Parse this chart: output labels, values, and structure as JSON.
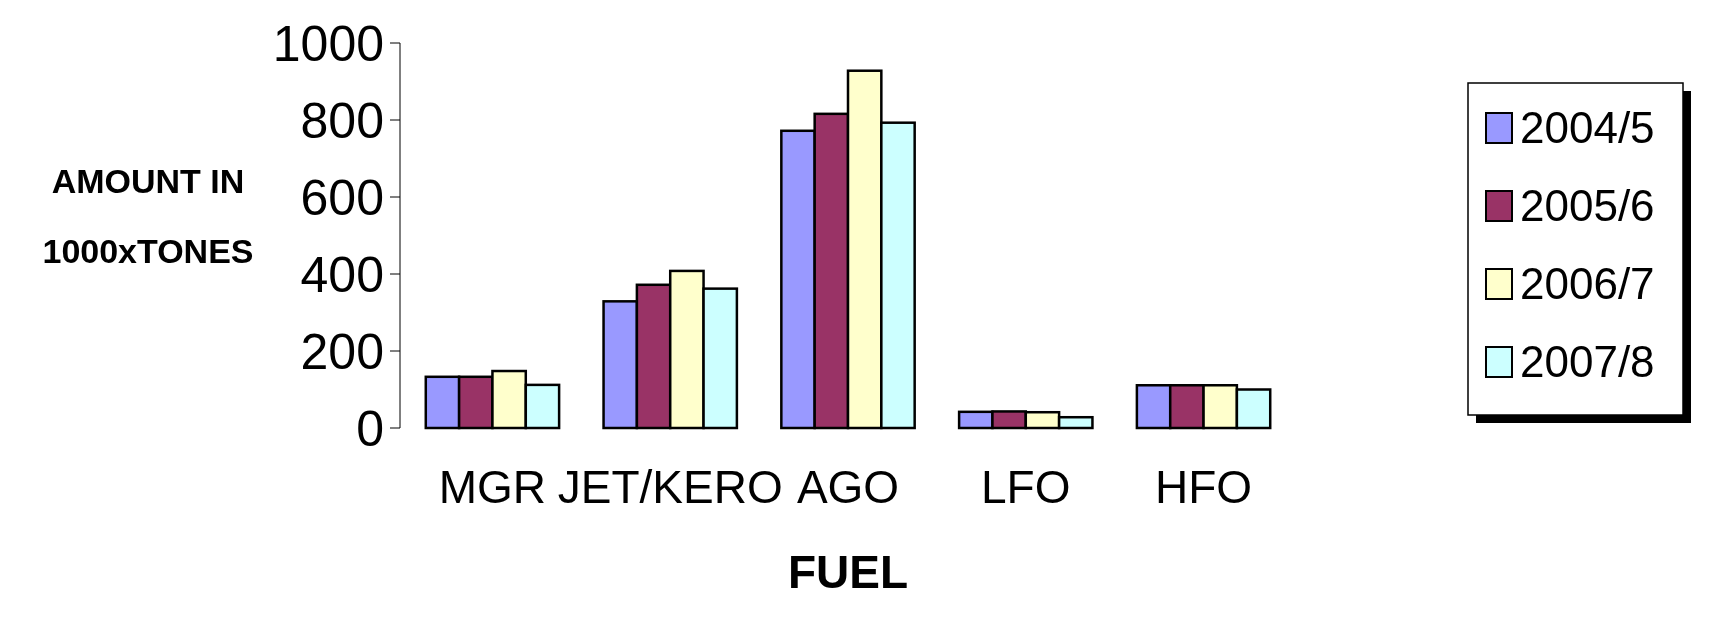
{
  "chart_data": {
    "type": "bar",
    "xlabel": "FUEL",
    "ylabel": "AMOUNT IN 1000xTONES",
    "categories": [
      "MGR",
      "JET/KERO",
      "AGO",
      "LFO",
      "HFO"
    ],
    "series": [
      {
        "name": "2004/5",
        "color": "#9999ff",
        "values": [
          133,
          329,
          772,
          42,
          111
        ]
      },
      {
        "name": "2005/6",
        "color": "#993366",
        "values": [
          133,
          372,
          816,
          43,
          111
        ]
      },
      {
        "name": "2006/7",
        "color": "#ffffcc",
        "values": [
          148,
          408,
          928,
          41,
          111
        ]
      },
      {
        "name": "2007/8",
        "color": "#ccffff",
        "values": [
          112,
          362,
          793,
          28,
          100
        ]
      }
    ],
    "ylim": [
      0,
      1000
    ],
    "yticks": [
      0,
      200,
      400,
      600,
      800,
      1000
    ],
    "legend": "right"
  }
}
